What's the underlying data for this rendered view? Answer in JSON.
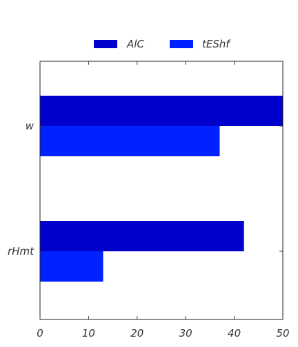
{
  "chart_data": {
    "type": "bar",
    "orientation": "horizontal",
    "title": "",
    "xlabel": "",
    "ylabel": "",
    "categories": [
      "w",
      "rHmt"
    ],
    "series": [
      {
        "name": "AlC",
        "values": [
          50,
          42
        ],
        "color": "#0000cc"
      },
      {
        "name": "tEShf",
        "values": [
          37,
          13
        ],
        "color": "#0022ff"
      }
    ],
    "xlim": [
      0,
      50
    ],
    "xticks": [
      0,
      10,
      20,
      30,
      40,
      50
    ],
    "grid": false,
    "legend_position": "top-center"
  }
}
